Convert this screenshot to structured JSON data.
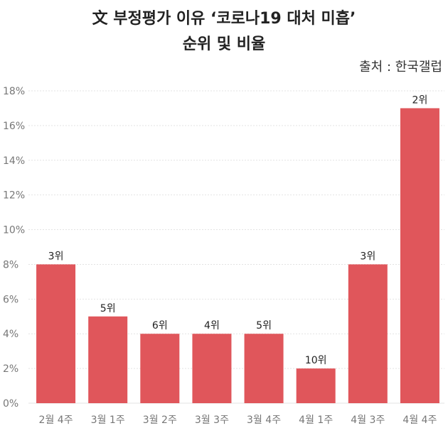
{
  "title_line1": "文 부정평가 이유 ‘코로나19 대처 미흡’",
  "title_line2": "순위 및 비율",
  "source": "출처 : 한국갤럽",
  "colors": {
    "bar": "#e0565b",
    "grid": "#e3e3e3"
  },
  "chart_data": {
    "type": "bar",
    "title": "文 부정평가 이유 ‘코로나19 대처 미흡’ 순위 및 비율",
    "categories": [
      "2월 4주",
      "3월 1주",
      "3월 2주",
      "3월 3주",
      "3월 4주",
      "4월 1주",
      "4월 3주",
      "4월 4주"
    ],
    "values": [
      8,
      5,
      4,
      4,
      4,
      2,
      8,
      17
    ],
    "data_labels": [
      "3위",
      "5위",
      "6위",
      "4위",
      "5위",
      "10위",
      "3위",
      "2위"
    ],
    "ylim": [
      0,
      18
    ],
    "yticks": [
      0,
      2,
      4,
      6,
      8,
      10,
      12,
      14,
      16,
      18
    ],
    "ytick_labels": [
      "0%",
      "2%",
      "4%",
      "6%",
      "8%",
      "10%",
      "12%",
      "14%",
      "16%",
      "18%"
    ],
    "grid": true
  }
}
